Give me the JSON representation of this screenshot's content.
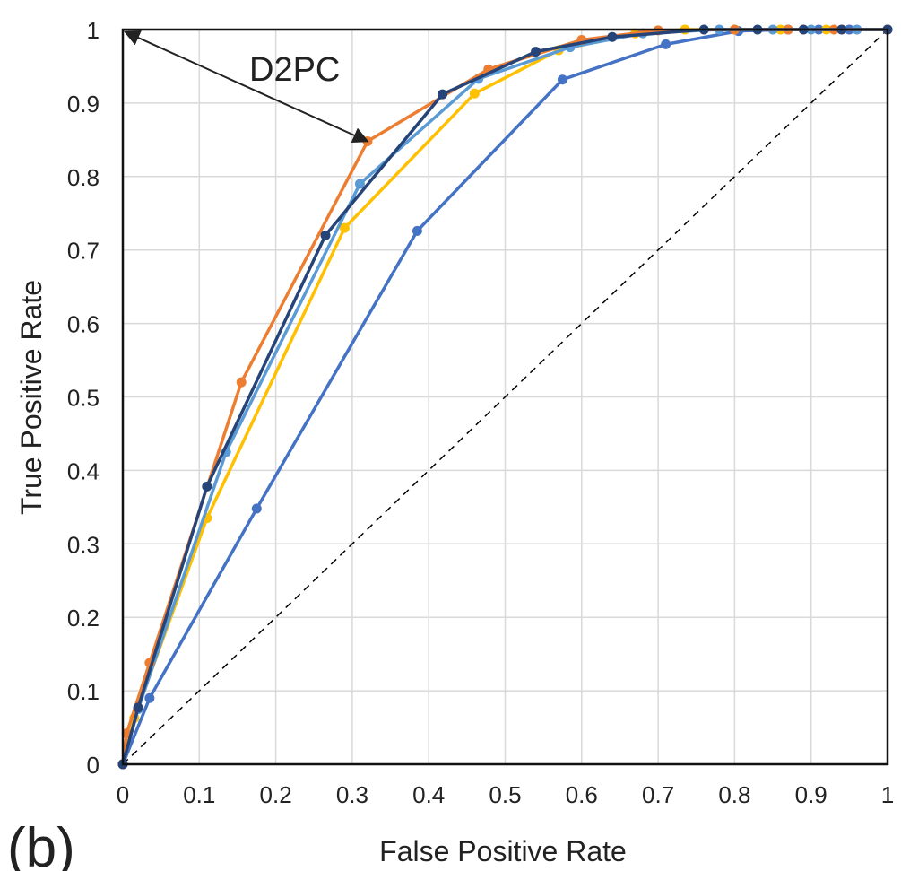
{
  "panel_label": "(b)",
  "chart_data": {
    "type": "line",
    "title": "",
    "xlabel": "False Positive Rate",
    "ylabel": "True Positive Rate",
    "xlim": [
      0,
      1
    ],
    "ylim": [
      0,
      1
    ],
    "xticks": [
      "0",
      "0.1",
      "0.2",
      "0.3",
      "0.4",
      "0.5",
      "0.6",
      "0.7",
      "0.8",
      "0.9",
      "1"
    ],
    "yticks": [
      "0",
      "0.1",
      "0.2",
      "0.3",
      "0.4",
      "0.5",
      "0.6",
      "0.7",
      "0.8",
      "0.9",
      "1"
    ],
    "grid": true,
    "legend": "none",
    "annotation": {
      "text": "D2PC",
      "from": [
        0.003,
        0.997
      ],
      "to": [
        0.32,
        0.848
      ]
    },
    "reference_line": {
      "x": [
        0,
        1
      ],
      "y": [
        0,
        1
      ],
      "style": "dashed",
      "color": "#000000"
    },
    "series": [
      {
        "color": "#4472c4",
        "x": [
          0,
          0.035,
          0.175,
          0.385,
          0.575,
          0.71,
          0.805,
          0.87,
          0.91,
          0.95,
          1.0
        ],
        "y": [
          0,
          0.09,
          0.348,
          0.726,
          0.932,
          0.98,
          0.998,
          1.0,
          1.0,
          1.0,
          1.0
        ]
      },
      {
        "color": "#ffc000",
        "x": [
          0,
          0.015,
          0.11,
          0.29,
          0.46,
          0.57,
          0.67,
          0.735,
          0.8,
          0.86,
          0.92,
          1.0
        ],
        "y": [
          0,
          0.063,
          0.335,
          0.73,
          0.913,
          0.972,
          0.995,
          1.0,
          1.0,
          1.0,
          1.0,
          1.0
        ]
      },
      {
        "color": "#5b9bd5",
        "x": [
          0,
          0.02,
          0.135,
          0.31,
          0.465,
          0.585,
          0.68,
          0.78,
          0.85,
          0.9,
          0.96,
          1.0
        ],
        "y": [
          0,
          0.075,
          0.425,
          0.79,
          0.933,
          0.976,
          0.995,
          1.0,
          1.0,
          1.0,
          1.0,
          1.0
        ]
      },
      {
        "color": "#ed7d31",
        "x": [
          0,
          0.005,
          0.035,
          0.155,
          0.32,
          0.478,
          0.6,
          0.7,
          0.8,
          0.87,
          0.93,
          1.0
        ],
        "y": [
          0,
          0.042,
          0.138,
          0.52,
          0.848,
          0.946,
          0.986,
          0.999,
          1.0,
          1.0,
          1.0,
          1.0
        ]
      },
      {
        "color": "#264478",
        "x": [
          0,
          0.02,
          0.11,
          0.265,
          0.418,
          0.54,
          0.64,
          0.76,
          0.83,
          0.89,
          0.94,
          1.0
        ],
        "y": [
          0,
          0.077,
          0.378,
          0.72,
          0.912,
          0.97,
          0.99,
          1.0,
          1.0,
          1.0,
          1.0,
          1.0
        ]
      }
    ]
  }
}
